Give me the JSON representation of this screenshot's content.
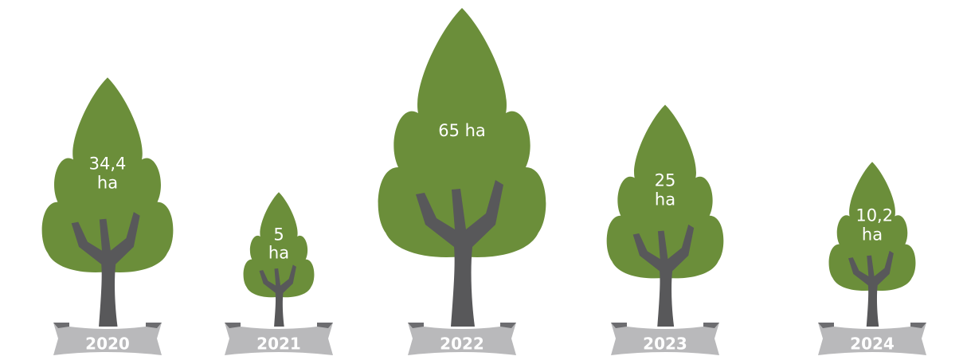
{
  "chart_data": {
    "type": "pictogram",
    "categories": [
      "2020",
      "2021",
      "2022",
      "2023",
      "2024"
    ],
    "values": [
      34.4,
      5,
      65,
      25,
      10.2
    ],
    "value_labels": [
      "34,4 ha",
      "5 ha",
      "65 ha",
      "25 ha",
      "10,2 ha"
    ],
    "color": "#6b8e3a"
  }
}
